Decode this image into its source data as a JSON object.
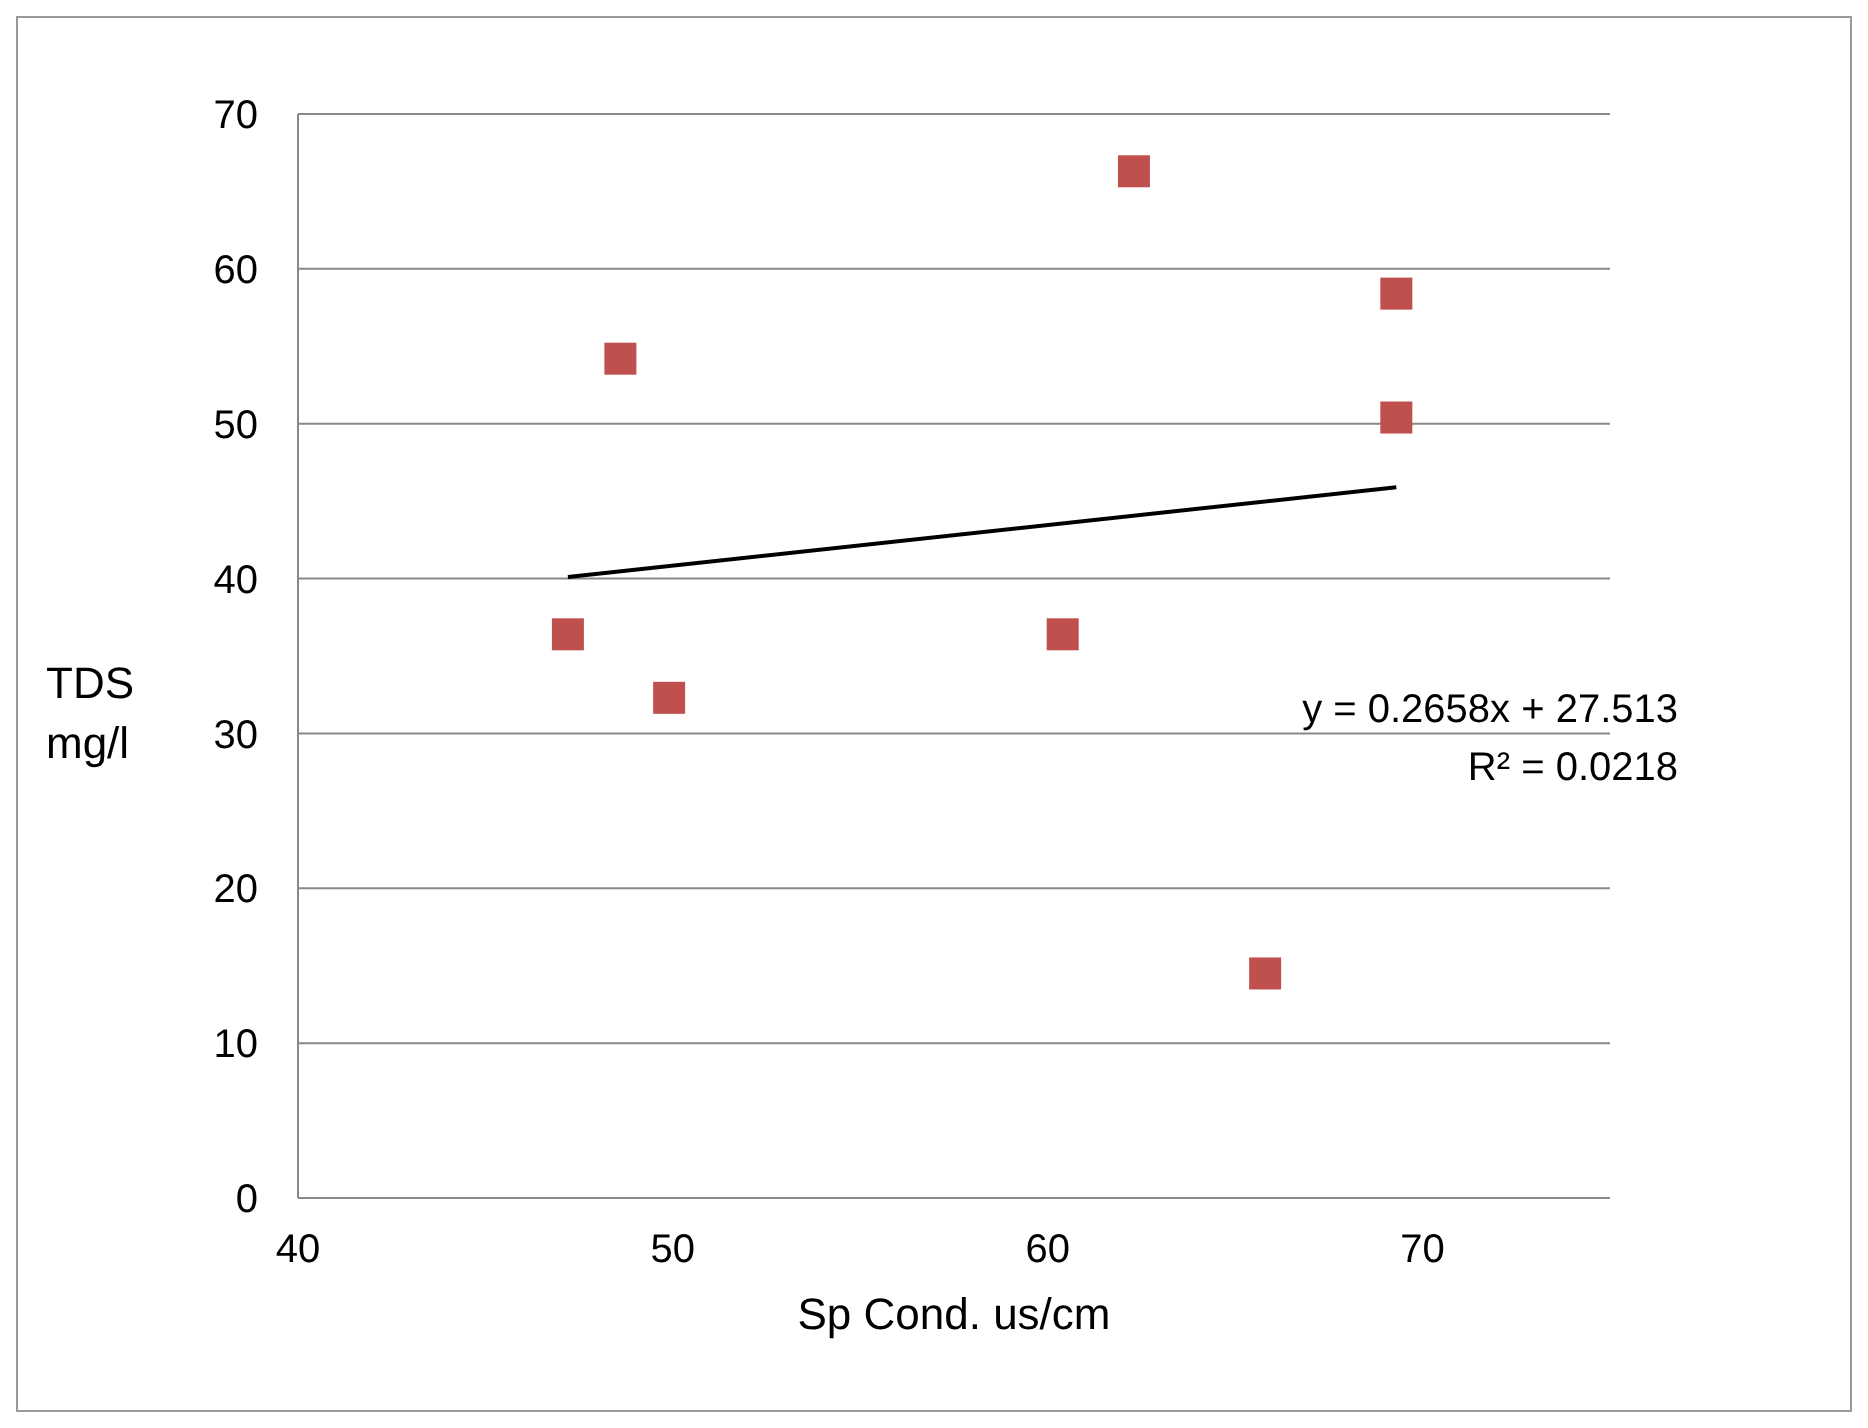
{
  "chart_data": {
    "type": "scatter",
    "xlabel": "Sp Cond. us/cm",
    "ylabel": "TDS\nmg/l",
    "x": [
      47.2,
      48.6,
      49.9,
      60.4,
      62.3,
      65.8,
      69.3,
      69.3
    ],
    "series": [
      {
        "type": "scatter",
        "color": "#c0504d",
        "marker": "square",
        "values": [
          36.4,
          54.2,
          32.3,
          36.4,
          66.3,
          14.5,
          58.4,
          50.4
        ]
      },
      {
        "type": "line",
        "color": "#000000",
        "marker": "none",
        "x": [
          47.2,
          69.3
        ],
        "values": [
          40.1,
          45.9
        ]
      }
    ],
    "xlim": [
      40,
      75
    ],
    "xticks": [
      40,
      50,
      60,
      70
    ],
    "ylim": [
      0,
      70
    ],
    "yticks": [
      0,
      10,
      20,
      30,
      40,
      50,
      60,
      70
    ],
    "grid": "y",
    "legend": false,
    "annotations": [
      "y = 0.2658x + 27.513",
      "R² = 0.0218"
    ]
  }
}
